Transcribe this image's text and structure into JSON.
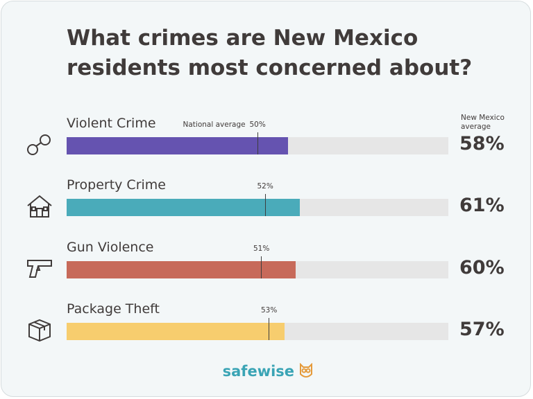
{
  "chart_data": {
    "type": "bar",
    "orientation": "horizontal",
    "title": "What crimes are New Mexico residents most concerned about?",
    "categories": [
      "Violent Crime",
      "Property Crime",
      "Gun Violence",
      "Package Theft"
    ],
    "series": [
      {
        "name": "New Mexico average",
        "colors": [
          "#6553b0",
          "#4aabba",
          "#c76a5a",
          "#f7cd6e"
        ],
        "values": [
          58,
          61,
          60,
          57
        ],
        "value_labels": [
          "58%",
          "61%",
          "60%",
          "57%"
        ]
      },
      {
        "name": "National average",
        "color": "#3d3d3d",
        "values": [
          50,
          52,
          51,
          53
        ],
        "value_labels": [
          "50%",
          "52%",
          "51%",
          "53%"
        ]
      }
    ],
    "xlim": [
      0,
      100
    ],
    "track_color": "#e6e6e6",
    "brand": "safewise"
  }
}
